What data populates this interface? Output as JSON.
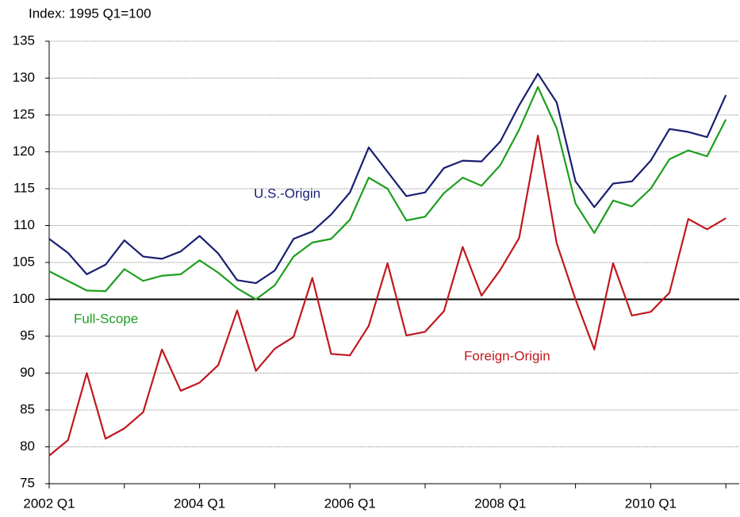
{
  "chart_data": {
    "type": "line",
    "subtitle": "Index: 1995 Q1=100",
    "categories": [
      "2002 Q1",
      null,
      null,
      null,
      null,
      null,
      null,
      null,
      "2004 Q1",
      null,
      null,
      null,
      null,
      null,
      null,
      null,
      "2006 Q1",
      null,
      null,
      null,
      null,
      null,
      null,
      null,
      "2008 Q1",
      null,
      null,
      null,
      null,
      null,
      null,
      null,
      "2010 Q1",
      null,
      null,
      null,
      null
    ],
    "series": [
      {
        "name": "U.S.-Origin",
        "color": "#1a1f71",
        "values": [
          108.2,
          106.3,
          103.4,
          104.7,
          108.0,
          105.8,
          105.5,
          106.5,
          108.6,
          106.2,
          102.6,
          102.2,
          103.9,
          108.2,
          109.2,
          111.5,
          114.5,
          120.6,
          117.3,
          114.0,
          114.5,
          117.8,
          118.8,
          118.7,
          121.4,
          126.3,
          130.6,
          126.7,
          116.0,
          112.5,
          115.7,
          116.0,
          118.8,
          123.1,
          122.7,
          122.0,
          127.7
        ]
      },
      {
        "name": "Full-Scope",
        "color": "#1e9e1e",
        "values": [
          103.8,
          102.5,
          101.2,
          101.1,
          104.1,
          102.5,
          103.2,
          103.4,
          105.3,
          103.6,
          101.5,
          100.0,
          101.9,
          105.8,
          107.7,
          108.2,
          110.8,
          116.5,
          115.0,
          110.7,
          111.2,
          114.4,
          116.5,
          115.4,
          118.2,
          123.0,
          128.8,
          123.2,
          113.0,
          109.0,
          113.4,
          112.6,
          115.0,
          119.0,
          120.2,
          119.4,
          124.4
        ]
      },
      {
        "name": "Foreign-Origin",
        "color": "#c0181e",
        "values": [
          78.8,
          80.9,
          90.0,
          81.1,
          82.5,
          84.7,
          93.2,
          87.6,
          88.7,
          91.1,
          98.5,
          90.3,
          93.3,
          94.9,
          102.9,
          92.6,
          92.4,
          96.4,
          104.9,
          95.1,
          95.6,
          98.4,
          107.1,
          100.5,
          104.0,
          108.3,
          122.2,
          107.6,
          100.0,
          93.2,
          104.9,
          97.8,
          98.3,
          100.9,
          110.9,
          109.5,
          111.0
        ]
      }
    ],
    "ylim": [
      75,
      135
    ],
    "yticks": [
      75,
      80,
      85,
      90,
      95,
      100,
      105,
      110,
      115,
      120,
      125,
      130,
      135
    ],
    "reference_line": 100,
    "grid": true
  }
}
